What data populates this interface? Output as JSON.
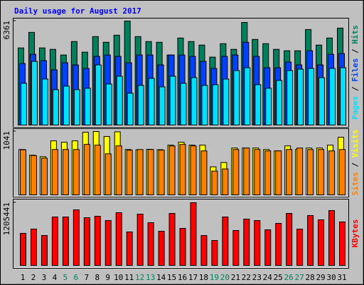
{
  "title": "Daily usage for August 2017",
  "chart_data": [
    {
      "type": "bar",
      "legend_separator": " / ",
      "ylim": [
        0,
        6361
      ],
      "yticks": [
        6361
      ],
      "series": [
        {
          "name": "Hits",
          "color": "#00805c",
          "values": [
            4716,
            5668,
            4716,
            4630,
            4284,
            5106,
            4457,
            5409,
            5063,
            5495,
            6361,
            5409,
            5106,
            5063,
            4284,
            5322,
            5106,
            4890,
            4154,
            4976,
            4630,
            6274,
            5236,
            4976,
            4630,
            4543,
            4543,
            5841,
            4890,
            5322,
            5928
          ]
        },
        {
          "name": "Files",
          "color": "#0040ff",
          "values": [
            3764,
            4327,
            3938,
            3375,
            3808,
            3678,
            3462,
            4197,
            4284,
            4197,
            3808,
            4284,
            4284,
            3678,
            4284,
            4284,
            4197,
            3894,
            3462,
            4197,
            4284,
            5063,
            4197,
            3505,
            3505,
            3851,
            3678,
            4543,
            3678,
            4327,
            4370
          ]
        },
        {
          "name": "Pages",
          "color": "#00e0ff",
          "values": [
            2553,
            3894,
            2813,
            2164,
            2380,
            2164,
            2250,
            3678,
            2510,
            2986,
            1947,
            2423,
            2856,
            2337,
            2986,
            2553,
            2899,
            2423,
            2466,
            2813,
            3332,
            3505,
            2466,
            2250,
            2726,
            3332,
            3418,
            3462,
            2899,
            3462,
            3505
          ]
        }
      ]
    },
    {
      "type": "bar",
      "legend_separator": " / ",
      "ylim": [
        0,
        1041
      ],
      "yticks": [
        1041
      ],
      "series": [
        {
          "name": "Visits",
          "color": "#ffff00",
          "values": [
            745,
            651,
            627,
            887,
            864,
            887,
            1029,
            1041,
            958,
            1035,
            745,
            740,
            748,
            742,
            816,
            864,
            816,
            816,
            461,
            532,
            769,
            769,
            769,
            745,
            722,
            804,
            745,
            769,
            769,
            816,
            946
          ]
        },
        {
          "name": "Sites",
          "color": "#ff8000",
          "values": [
            740,
            645,
            603,
            745,
            745,
            745,
            828,
            816,
            674,
            804,
            733,
            745,
            745,
            735,
            804,
            828,
            804,
            722,
            390,
            426,
            745,
            769,
            745,
            722,
            722,
            745,
            769,
            745,
            745,
            722,
            745
          ]
        }
      ]
    },
    {
      "type": "bar",
      "ylim": [
        0,
        1205441
      ],
      "yticks": [
        1205441
      ],
      "categories": [
        "1",
        "2",
        "3",
        "4",
        "5",
        "6",
        "7",
        "8",
        "9",
        "10",
        "11",
        "12",
        "13",
        "14",
        "15",
        "16",
        "17",
        "18",
        "19",
        "20",
        "21",
        "22",
        "23",
        "24",
        "25",
        "26",
        "27",
        "28",
        "29",
        "30",
        "31"
      ],
      "category_colors": [
        "#000000",
        "#000000",
        "#000000",
        "#000000",
        "#00805c",
        "#00805c",
        "#000000",
        "#000000",
        "#000000",
        "#000000",
        "#000000",
        "#00805c",
        "#00805c",
        "#000000",
        "#000000",
        "#000000",
        "#000000",
        "#000000",
        "#00805c",
        "#00805c",
        "#000000",
        "#000000",
        "#000000",
        "#000000",
        "#000000",
        "#00805c",
        "#00805c",
        "#000000",
        "#000000",
        "#000000",
        "#000000"
      ],
      "series": [
        {
          "name": "KBytes",
          "color": "#ff0000",
          "values": [
            616410,
            698598,
            575316,
            931464,
            931464,
            1068444,
            917766,
            945162,
            862974,
            1013652,
            643806,
            986256,
            821880,
            657504,
            999954,
            712296,
            1205441,
            575316,
            479430,
            931464,
            671202,
            890370,
            862974,
            684900,
            808182,
            999954,
            698598,
            958860,
            876672,
            1054746,
            835578
          ]
        }
      ]
    }
  ]
}
